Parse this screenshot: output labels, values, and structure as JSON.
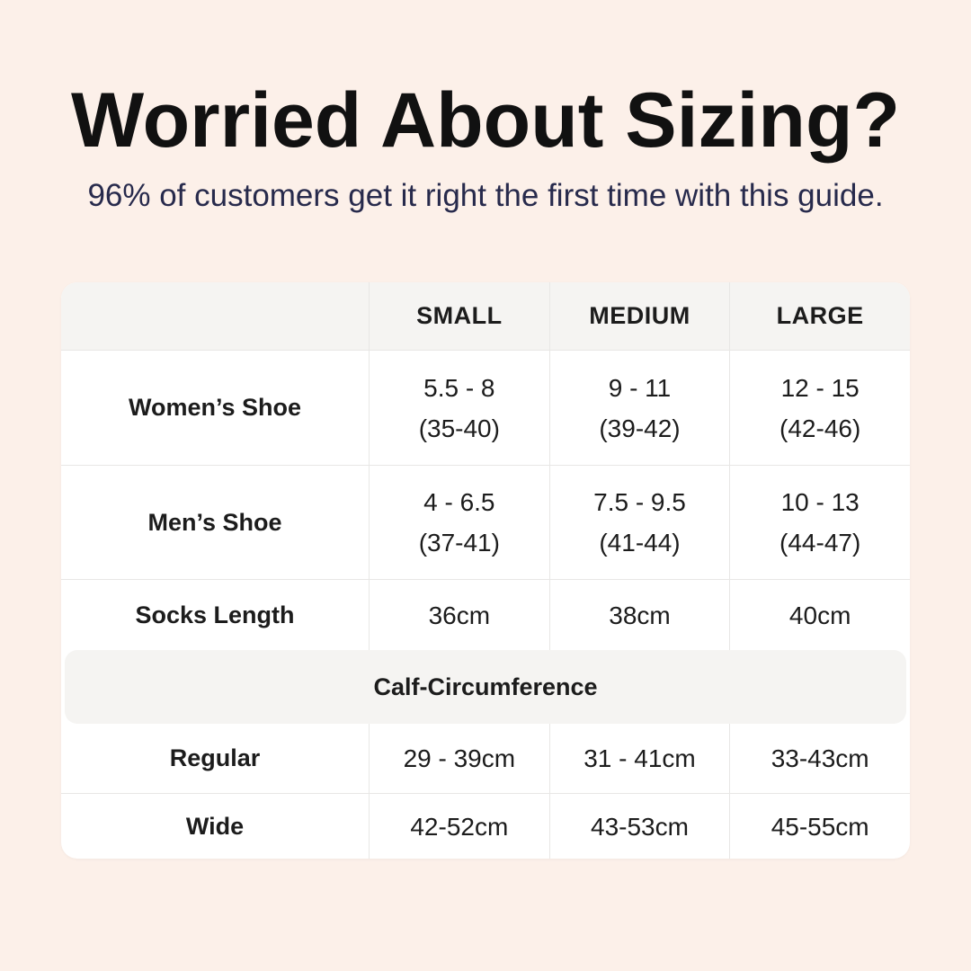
{
  "header": {
    "title": "Worried About Sizing?",
    "subtitle": "96% of customers get it right the first time with this guide."
  },
  "table": {
    "col_headers": [
      "SMALL",
      "MEDIUM",
      "LARGE"
    ],
    "shoe_rows": [
      {
        "label": "Women’s Shoe",
        "small": [
          "5.5 - 8",
          "(35-40)"
        ],
        "medium": [
          "9 - 11",
          "(39-42)"
        ],
        "large": [
          "12 - 15",
          "(42-46)"
        ]
      },
      {
        "label": "Men’s Shoe",
        "small": [
          "4 - 6.5",
          "(37-41)"
        ],
        "medium": [
          "7.5 - 9.5",
          "(41-44)"
        ],
        "large": [
          "10 - 13",
          "(44-47)"
        ]
      }
    ],
    "socks_row": {
      "label": "Socks Length",
      "small": "36cm",
      "medium": "38cm",
      "large": "40cm"
    },
    "section_header": "Calf-Circumference",
    "calf_rows": [
      {
        "label": "Regular",
        "small": "29 - 39cm",
        "medium": "31 - 41cm",
        "large": "33-43cm"
      },
      {
        "label": "Wide",
        "small": "42-52cm",
        "medium": "43-53cm",
        "large": "45-55cm"
      }
    ]
  },
  "colors": {
    "background": "#fcf0e9",
    "card": "#ffffff",
    "band": "#f5f4f2",
    "divider": "#e8e7e5",
    "title": "#111111",
    "subtitle": "#272a4c",
    "text": "#1c1c1c"
  }
}
